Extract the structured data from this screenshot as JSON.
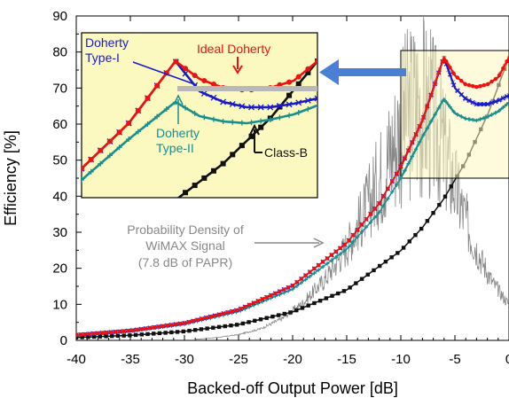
{
  "chart_data": {
    "type": "line",
    "xlabel": "Backed-off Output Power [dB]",
    "ylabel": "Efficiency [%]",
    "xlim": [
      -40,
      0
    ],
    "ylim": [
      0,
      90
    ],
    "xticks": [
      -40,
      -35,
      -30,
      -25,
      -20,
      -15,
      -10,
      -5,
      0
    ],
    "yticks": [
      0,
      10,
      20,
      30,
      40,
      50,
      60,
      70,
      80,
      90
    ],
    "grid": false,
    "series": [
      {
        "name": "Ideal Doherty",
        "color": "#ee1111",
        "marker": "dot",
        "points": [
          [
            -40,
            1.5
          ],
          [
            -35,
            2.7
          ],
          [
            -30,
            4.8
          ],
          [
            -25,
            8.5
          ],
          [
            -20,
            15.2
          ],
          [
            -15,
            27
          ],
          [
            -12,
            38
          ],
          [
            -10,
            48.2
          ],
          [
            -8,
            61
          ],
          [
            -6.02,
            78.5
          ],
          [
            -5,
            73.5
          ],
          [
            -4,
            71
          ],
          [
            -3,
            70.3
          ],
          [
            -2,
            71
          ],
          [
            -1,
            73
          ],
          [
            0,
            78.5
          ]
        ]
      },
      {
        "name": "Doherty Type-I",
        "color": "#1a1acc",
        "marker": "x",
        "points": [
          [
            -40,
            1.5
          ],
          [
            -35,
            2.7
          ],
          [
            -30,
            4.8
          ],
          [
            -25,
            8.5
          ],
          [
            -20,
            15.2
          ],
          [
            -15,
            27
          ],
          [
            -12,
            38
          ],
          [
            -10,
            48.2
          ],
          [
            -8,
            61
          ],
          [
            -6.02,
            78.5
          ],
          [
            -5,
            70
          ],
          [
            -4,
            67
          ],
          [
            -3,
            65.5
          ],
          [
            -2,
            65.5
          ],
          [
            -1,
            66.5
          ],
          [
            0,
            68
          ]
        ]
      },
      {
        "name": "Doherty Type-II",
        "color": "#1a8f8f",
        "marker": "plus",
        "points": [
          [
            -40,
            1.5
          ],
          [
            -35,
            2.6
          ],
          [
            -30,
            4.5
          ],
          [
            -25,
            8
          ],
          [
            -20,
            14.2
          ],
          [
            -15,
            25.3
          ],
          [
            -12,
            35.5
          ],
          [
            -10,
            45
          ],
          [
            -8,
            56.5
          ],
          [
            -6.02,
            67
          ],
          [
            -5,
            63
          ],
          [
            -4,
            61.5
          ],
          [
            -3,
            61
          ],
          [
            -2,
            62
          ],
          [
            -1,
            63.5
          ],
          [
            0,
            66
          ]
        ]
      },
      {
        "name": "Class-B",
        "color": "#111111",
        "marker": "square",
        "points": [
          [
            -40,
            0.8
          ],
          [
            -35,
            1.4
          ],
          [
            -30,
            2.5
          ],
          [
            -25,
            4.4
          ],
          [
            -20,
            7.9
          ],
          [
            -15,
            14
          ],
          [
            -10,
            24.9
          ],
          [
            -8,
            31.3
          ],
          [
            -6,
            39.4
          ],
          [
            -4,
            49.6
          ],
          [
            -2,
            62.4
          ],
          [
            0,
            78.5
          ]
        ]
      },
      {
        "name": "Probability Density of WiMAX Signal (7.8 dB of PAPR)",
        "color": "#888888",
        "marker": "none",
        "points": [
          [
            -29,
            0.3
          ],
          [
            -27,
            0.8
          ],
          [
            -25,
            1.6
          ],
          [
            -23,
            3.2
          ],
          [
            -21,
            6
          ],
          [
            -19,
            10.5
          ],
          [
            -17,
            17
          ],
          [
            -15,
            26
          ],
          [
            -13,
            38
          ],
          [
            -11,
            52
          ],
          [
            -9.5,
            62
          ],
          [
            -8.5,
            66
          ],
          [
            -7.5,
            64
          ],
          [
            -6.5,
            58
          ],
          [
            -5.5,
            48
          ],
          [
            -4.5,
            38
          ],
          [
            -3.5,
            29
          ],
          [
            -2.5,
            22
          ],
          [
            -1.5,
            16
          ],
          [
            -0.5,
            12
          ],
          [
            0,
            10
          ]
        ]
      }
    ],
    "annotations": [
      "Ideal Doherty",
      "Doherty Type-I",
      "Doherty Type-II",
      "Class-B",
      "Probability Density of WiMAX Signal (7.8 dB of PAPR)"
    ]
  },
  "labels": {
    "ideal": "Ideal Doherty",
    "type1_line1": "Doherty",
    "type1_line2": "Type-I",
    "type2_line1": "Doherty",
    "type2_line2": "Type-II",
    "classb": "Class-B",
    "pdf_line1": "Probability Density of",
    "pdf_line2": "WiMAX Signal",
    "pdf_line3": "(7.8 dB of PAPR)"
  },
  "colors": {
    "inset_bg": "#fbf8c0",
    "ideal": "#ee1111",
    "type1": "#1a1acc",
    "type2": "#1a8f8f",
    "classb": "#111111",
    "pdf": "#888888",
    "arrow": "#4a7fd4"
  }
}
